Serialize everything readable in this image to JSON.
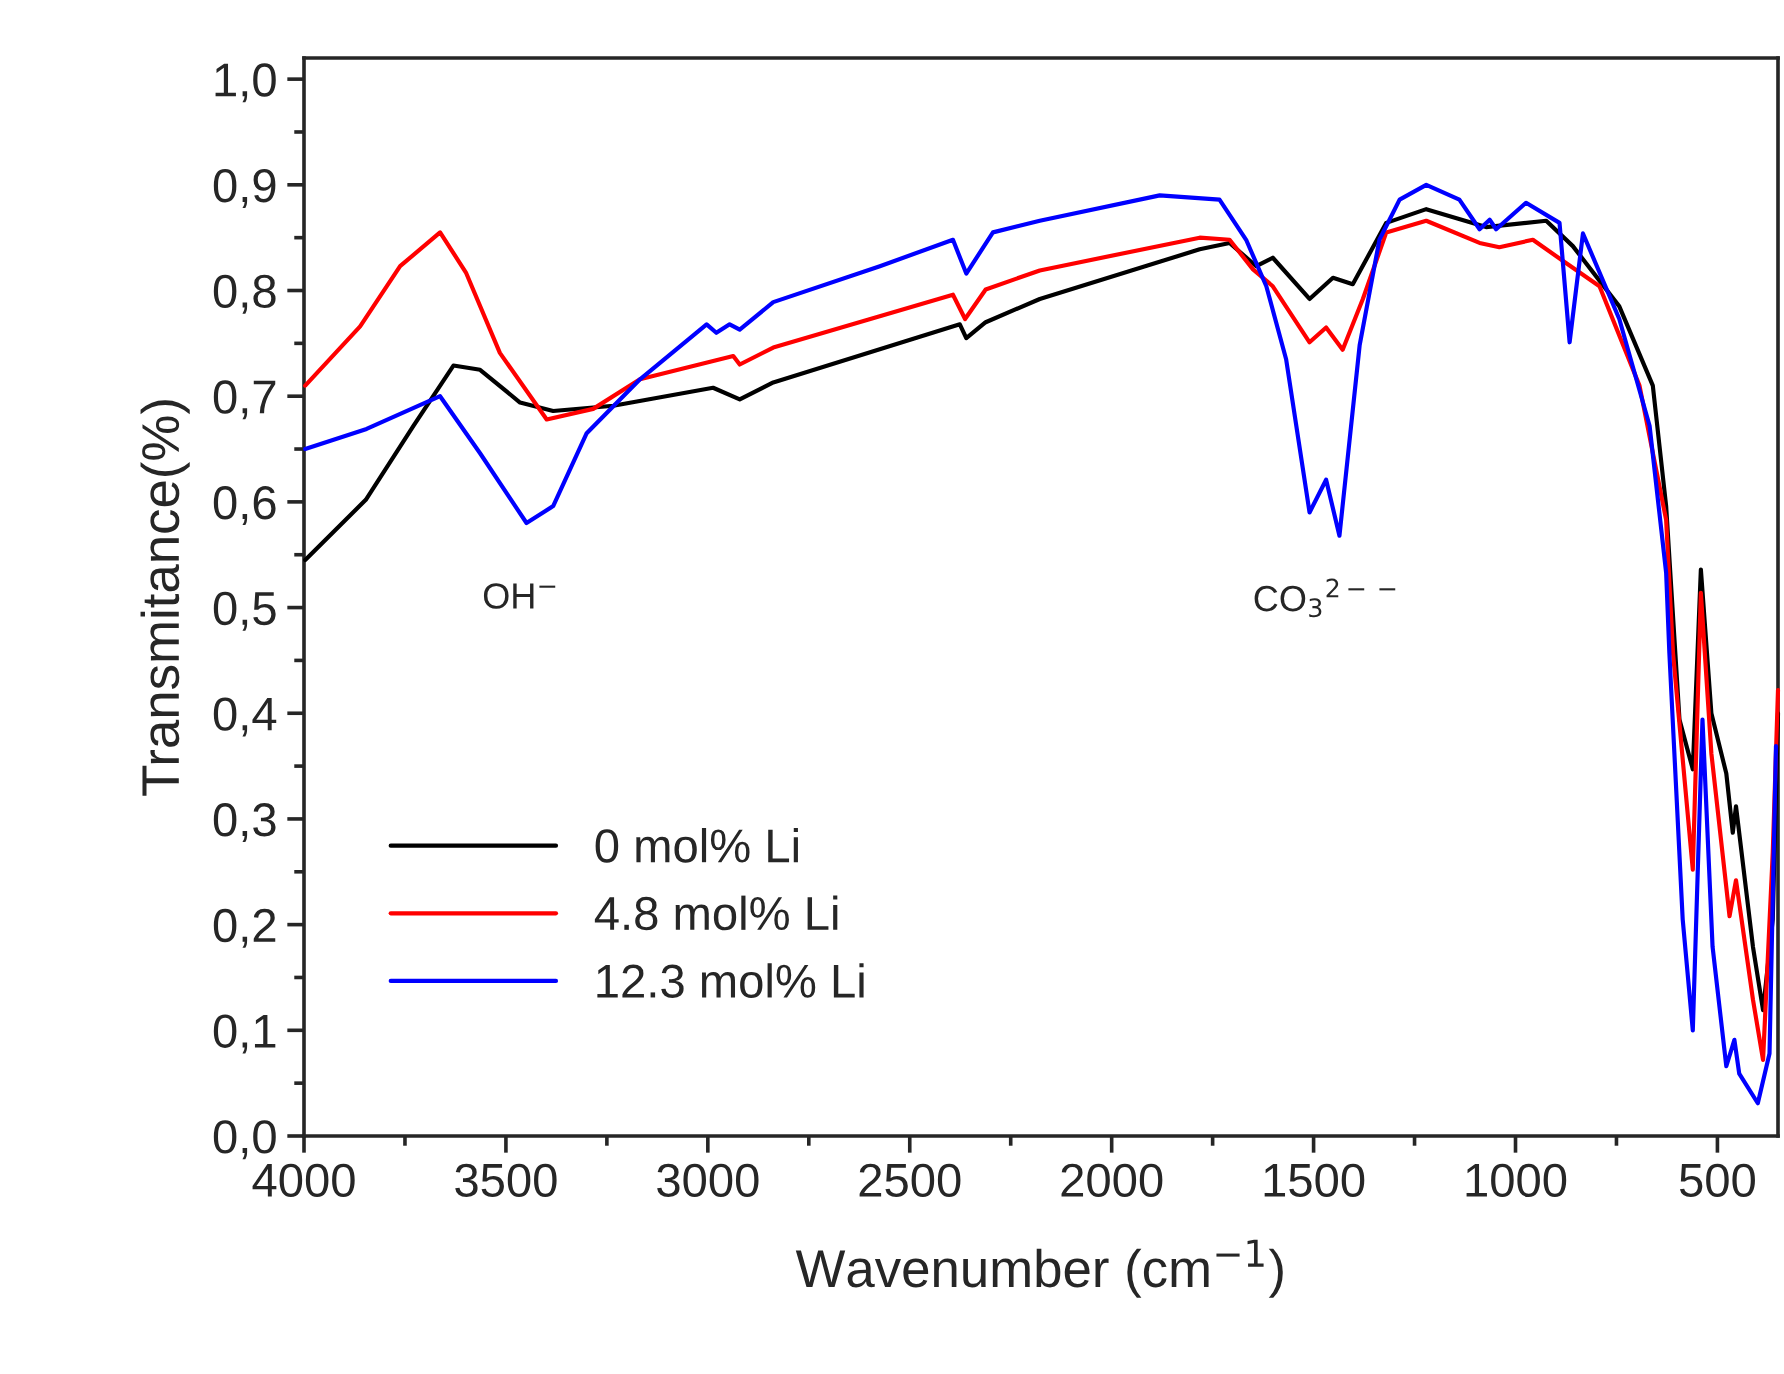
{
  "chart_data": {
    "type": "line",
    "xlabel": "Wavenumber (cm$^{−1}$)",
    "ylabel": "Transmitance(%)",
    "xlim": [
      4000,
      350
    ],
    "xticks": [
      4000,
      3500,
      3000,
      2500,
      2000,
      1500,
      1000,
      500
    ],
    "ylim": [
      0,
      1.02
    ],
    "yticks": [
      {
        "value": 0,
        "label": "0,0"
      },
      {
        "value": 0.1,
        "label": "0,1"
      },
      {
        "value": 0.2,
        "label": "0,2"
      },
      {
        "value": 0.3,
        "label": "0,3"
      },
      {
        "value": 0.4,
        "label": "0,4"
      },
      {
        "value": 0.5,
        "label": "0,5"
      },
      {
        "value": 0.6,
        "label": "0,6"
      },
      {
        "value": 0.7,
        "label": "0,7"
      },
      {
        "value": 0.8,
        "label": "0,8"
      },
      {
        "value": 0.9,
        "label": "0,9"
      },
      {
        "value": 1.0,
        "label": "1,0"
      }
    ],
    "grid": false,
    "legend": "bottom left",
    "marker": "none",
    "line_style": "solid",
    "annotations": [
      "OH$^{−}$",
      "CO$_{3}$$^{2−−}$"
    ],
    "series": [
      {
        "name": "0 mol% Li",
        "color": "#000000",
        "x": [
          3997,
          3847,
          3729,
          3630,
          3564,
          3465,
          3383,
          3234,
          2987,
          2921,
          2838,
          2376,
          2360,
          2312,
          2178,
          1782,
          1708,
          1642,
          1601,
          1510,
          1452,
          1403,
          1320,
          1221,
          1073,
          924,
          858,
          743,
          660,
          627,
          594,
          561,
          541,
          515,
          478,
          462,
          454,
          412,
          387,
          363,
          350
        ],
        "values": [
          0.545,
          0.602,
          0.672,
          0.729,
          0.725,
          0.694,
          0.686,
          0.691,
          0.708,
          0.697,
          0.713,
          0.768,
          0.755,
          0.77,
          0.792,
          0.839,
          0.845,
          0.823,
          0.831,
          0.792,
          0.812,
          0.806,
          0.864,
          0.877,
          0.86,
          0.866,
          0.842,
          0.785,
          0.71,
          0.596,
          0.394,
          0.347,
          0.536,
          0.4,
          0.343,
          0.287,
          0.312,
          0.179,
          0.119,
          0.205,
          0.4
        ]
      },
      {
        "name": "4.8 mol% Li",
        "color": "#ff0000",
        "x": [
          3997,
          3861,
          3762,
          3663,
          3599,
          3515,
          3399,
          3284,
          3168,
          2937,
          2921,
          2838,
          2393,
          2363,
          2312,
          2178,
          1782,
          1708,
          1650,
          1601,
          1510,
          1469,
          1428,
          1378,
          1320,
          1221,
          1089,
          1040,
          957,
          875,
          792,
          693,
          627,
          610,
          561,
          541,
          515,
          470,
          454,
          412,
          387,
          363,
          350
        ],
        "values": [
          0.71,
          0.766,
          0.823,
          0.855,
          0.817,
          0.741,
          0.678,
          0.688,
          0.716,
          0.738,
          0.73,
          0.746,
          0.796,
          0.773,
          0.801,
          0.819,
          0.85,
          0.848,
          0.82,
          0.804,
          0.751,
          0.765,
          0.744,
          0.792,
          0.855,
          0.866,
          0.845,
          0.841,
          0.848,
          0.826,
          0.804,
          0.71,
          0.583,
          0.457,
          0.252,
          0.514,
          0.362,
          0.208,
          0.242,
          0.129,
          0.072,
          0.268,
          0.422
        ]
      },
      {
        "name": "12.3 mol% Li",
        "color": "#0000ff",
        "x": [
          3997,
          3845,
          3663,
          3564,
          3449,
          3383,
          3300,
          3168,
          3003,
          2979,
          2946,
          2921,
          2838,
          2574,
          2393,
          2360,
          2294,
          2178,
          1881,
          1733,
          1667,
          1617,
          1568,
          1510,
          1469,
          1436,
          1386,
          1337,
          1287,
          1221,
          1139,
          1089,
          1064,
          1048,
          974,
          891,
          866,
          833,
          743,
          668,
          627,
          619,
          586,
          561,
          537,
          512,
          478,
          458,
          446,
          400,
          371,
          355
        ],
        "values": [
          0.65,
          0.669,
          0.7,
          0.646,
          0.58,
          0.596,
          0.665,
          0.716,
          0.768,
          0.76,
          0.768,
          0.763,
          0.789,
          0.823,
          0.848,
          0.816,
          0.855,
          0.866,
          0.89,
          0.886,
          0.848,
          0.804,
          0.735,
          0.59,
          0.621,
          0.568,
          0.748,
          0.848,
          0.886,
          0.9,
          0.886,
          0.858,
          0.867,
          0.858,
          0.883,
          0.864,
          0.751,
          0.854,
          0.773,
          0.672,
          0.533,
          0.457,
          0.205,
          0.1,
          0.394,
          0.179,
          0.066,
          0.091,
          0.059,
          0.031,
          0.078,
          0.369
        ]
      }
    ]
  }
}
